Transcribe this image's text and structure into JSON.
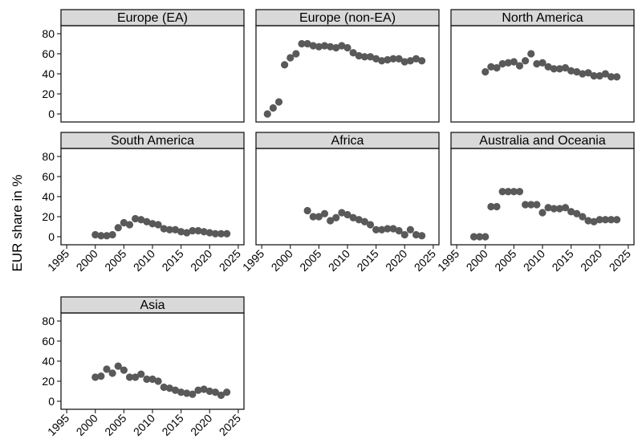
{
  "chart_data": {
    "type": "scatter",
    "ylabel": "EUR share in %",
    "ylim": [
      -8,
      88
    ],
    "yticks": [
      0,
      20,
      40,
      60,
      80
    ],
    "xlim": [
      1994,
      2026
    ],
    "xticks": [
      1995,
      2000,
      2005,
      2010,
      2015,
      2020,
      2025
    ],
    "colors": {
      "points": "#595959",
      "strip": "#d9d9d9",
      "frame": "#1a1a1a"
    },
    "facets": [
      {
        "title": "Europe (EA)",
        "x": [],
        "y": []
      },
      {
        "title": "Europe (non-EA)",
        "x": [
          1996,
          1997,
          1998,
          1999,
          2000,
          2001,
          2002,
          2003,
          2004,
          2005,
          2006,
          2007,
          2008,
          2009,
          2010,
          2011,
          2012,
          2013,
          2014,
          2015,
          2016,
          2017,
          2018,
          2019,
          2020,
          2021,
          2022,
          2023
        ],
        "y": [
          0,
          6,
          12,
          49,
          56,
          60,
          70,
          70,
          68,
          67,
          68,
          67,
          66,
          68,
          66,
          61,
          58,
          57,
          57,
          55,
          53,
          54,
          55,
          55,
          52,
          53,
          55,
          53
        ]
      },
      {
        "title": "North America",
        "x": [
          2000,
          2001,
          2002,
          2003,
          2004,
          2005,
          2006,
          2007,
          2008,
          2009,
          2010,
          2011,
          2012,
          2013,
          2014,
          2015,
          2016,
          2017,
          2018,
          2019,
          2020,
          2021,
          2022,
          2023
        ],
        "y": [
          42,
          47,
          46,
          50,
          51,
          52,
          48,
          53,
          60,
          50,
          51,
          47,
          45,
          45,
          46,
          43,
          42,
          40,
          41,
          38,
          38,
          40,
          37,
          37
        ]
      },
      {
        "title": "South America",
        "x": [
          2000,
          2001,
          2002,
          2003,
          2004,
          2005,
          2006,
          2007,
          2008,
          2009,
          2010,
          2011,
          2012,
          2013,
          2014,
          2015,
          2016,
          2017,
          2018,
          2019,
          2020,
          2021,
          2022,
          2023
        ],
        "y": [
          2,
          1,
          1,
          2,
          9,
          14,
          12,
          18,
          17,
          15,
          13,
          12,
          8,
          7,
          7,
          5,
          4,
          6,
          6,
          5,
          4,
          3,
          3,
          3
        ]
      },
      {
        "title": "Africa",
        "x": [
          2003,
          2004,
          2005,
          2006,
          2007,
          2008,
          2009,
          2010,
          2011,
          2012,
          2013,
          2014,
          2015,
          2016,
          2017,
          2018,
          2019,
          2020,
          2021,
          2022,
          2023
        ],
        "y": [
          26,
          20,
          20,
          23,
          16,
          19,
          24,
          22,
          19,
          17,
          15,
          12,
          7,
          7,
          8,
          8,
          6,
          2,
          7,
          2,
          1
        ]
      },
      {
        "title": "Australia and Oceania",
        "x": [
          1998,
          1999,
          2000,
          2001,
          2002,
          2003,
          2004,
          2005,
          2006,
          2007,
          2008,
          2009,
          2010,
          2011,
          2012,
          2013,
          2014,
          2015,
          2016,
          2017,
          2018,
          2019,
          2020,
          2021,
          2022,
          2023
        ],
        "y": [
          0,
          0,
          0,
          30,
          30,
          45,
          45,
          45,
          45,
          32,
          32,
          32,
          24,
          29,
          28,
          28,
          29,
          25,
          23,
          20,
          16,
          15,
          17,
          17,
          17,
          17
        ]
      },
      {
        "title": "Asia",
        "x": [
          2000,
          2001,
          2002,
          2003,
          2004,
          2005,
          2006,
          2007,
          2008,
          2009,
          2010,
          2011,
          2012,
          2013,
          2014,
          2015,
          2016,
          2017,
          2018,
          2019,
          2020,
          2021,
          2022,
          2023
        ],
        "y": [
          24,
          25,
          32,
          28,
          35,
          31,
          24,
          24,
          27,
          22,
          22,
          20,
          14,
          13,
          11,
          9,
          8,
          7,
          11,
          12,
          10,
          9,
          6,
          9
        ]
      }
    ]
  }
}
